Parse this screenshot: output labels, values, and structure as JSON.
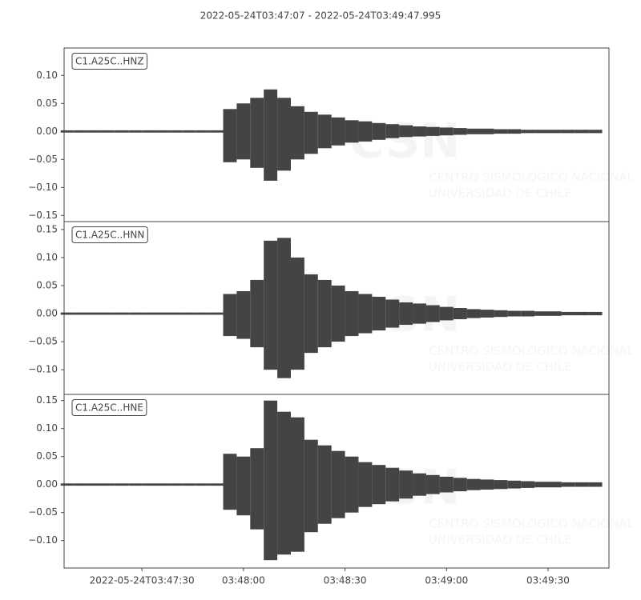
{
  "chart_data": [
    {
      "type": "envelope",
      "title": "2022-05-24T03:47:07  -  2022-05-24T03:49:47.995",
      "label": "C1.A25C..HNZ",
      "color": "#444444",
      "watermark": [
        "CSN",
        "CENTRO SISMOLOGICO NACIONAL",
        "UNIVERSIDAD DE CHILE"
      ],
      "x": [
        8,
        12,
        16,
        20,
        24,
        28,
        32,
        36,
        40,
        44,
        48,
        52,
        56,
        60,
        64,
        68,
        72,
        76,
        80,
        84,
        88,
        92,
        96,
        100,
        104,
        108,
        112,
        116,
        120,
        124,
        128,
        132,
        136,
        140,
        144,
        148,
        152,
        156,
        160,
        164
      ],
      "series": [
        {
          "name": "max",
          "values": [
            0.002,
            0.002,
            0.002,
            0.002,
            0.002,
            0.002,
            0.002,
            0.002,
            0.002,
            0.002,
            0.002,
            0.002,
            0.04,
            0.05,
            0.06,
            0.075,
            0.06,
            0.045,
            0.035,
            0.03,
            0.025,
            0.02,
            0.018,
            0.015,
            0.013,
            0.011,
            0.009,
            0.008,
            0.007,
            0.006,
            0.005,
            0.005,
            0.004,
            0.004,
            0.003,
            0.003,
            0.003,
            0.003,
            0.003,
            0.003
          ]
        },
        {
          "name": "min",
          "values": [
            -0.002,
            -0.002,
            -0.002,
            -0.002,
            -0.002,
            -0.002,
            -0.002,
            -0.002,
            -0.002,
            -0.002,
            -0.002,
            -0.002,
            -0.055,
            -0.05,
            -0.065,
            -0.088,
            -0.07,
            -0.05,
            -0.04,
            -0.03,
            -0.025,
            -0.02,
            -0.018,
            -0.015,
            -0.012,
            -0.01,
            -0.009,
            -0.008,
            -0.007,
            -0.006,
            -0.005,
            -0.005,
            -0.004,
            -0.004,
            -0.003,
            -0.003,
            -0.003,
            -0.003,
            -0.003,
            -0.003
          ]
        }
      ],
      "xlim": [
        7,
        167.995
      ],
      "ylim": [
        -0.161,
        0.149
      ],
      "yticks": [
        {
          "value": -0.15,
          "label": "−0.15"
        },
        {
          "value": -0.1,
          "label": "−0.10"
        },
        {
          "value": -0.05,
          "label": "−0.05"
        },
        {
          "value": 0,
          "label": "0.00"
        },
        {
          "value": 0.05,
          "label": "0.05"
        },
        {
          "value": 0.1,
          "label": "0.10"
        }
      ]
    },
    {
      "type": "envelope",
      "label": "C1.A25C..HNN",
      "color": "#444444",
      "x": [
        8,
        12,
        16,
        20,
        24,
        28,
        32,
        36,
        40,
        44,
        48,
        52,
        56,
        60,
        64,
        68,
        72,
        76,
        80,
        84,
        88,
        92,
        96,
        100,
        104,
        108,
        112,
        116,
        120,
        124,
        128,
        132,
        136,
        140,
        144,
        148,
        152,
        156,
        160,
        164
      ],
      "series": [
        {
          "name": "max",
          "values": [
            0.002,
            0.002,
            0.002,
            0.002,
            0.002,
            0.002,
            0.002,
            0.002,
            0.002,
            0.002,
            0.002,
            0.002,
            0.035,
            0.04,
            0.06,
            0.13,
            0.135,
            0.1,
            0.07,
            0.06,
            0.05,
            0.04,
            0.035,
            0.03,
            0.025,
            0.02,
            0.018,
            0.015,
            0.012,
            0.01,
            0.008,
            0.007,
            0.006,
            0.005,
            0.005,
            0.004,
            0.004,
            0.003,
            0.003,
            0.003
          ]
        },
        {
          "name": "min",
          "values": [
            -0.002,
            -0.002,
            -0.002,
            -0.002,
            -0.002,
            -0.002,
            -0.002,
            -0.002,
            -0.002,
            -0.002,
            -0.002,
            -0.002,
            -0.04,
            -0.045,
            -0.06,
            -0.1,
            -0.115,
            -0.1,
            -0.07,
            -0.06,
            -0.05,
            -0.04,
            -0.035,
            -0.03,
            -0.025,
            -0.02,
            -0.018,
            -0.015,
            -0.012,
            -0.01,
            -0.008,
            -0.007,
            -0.006,
            -0.005,
            -0.005,
            -0.004,
            -0.004,
            -0.003,
            -0.003,
            -0.003
          ]
        }
      ],
      "xlim": [
        7,
        167.995
      ],
      "ylim": [
        -0.144,
        0.164
      ],
      "yticks": [
        {
          "value": -0.1,
          "label": "−0.10"
        },
        {
          "value": -0.05,
          "label": "−0.05"
        },
        {
          "value": 0,
          "label": "0.00"
        },
        {
          "value": 0.05,
          "label": "0.05"
        },
        {
          "value": 0.1,
          "label": "0.10"
        },
        {
          "value": 0.15,
          "label": "0.15"
        }
      ]
    },
    {
      "type": "envelope",
      "label": "C1.A25C..HNE",
      "color": "#444444",
      "x": [
        8,
        12,
        16,
        20,
        24,
        28,
        32,
        36,
        40,
        44,
        48,
        52,
        56,
        60,
        64,
        68,
        72,
        76,
        80,
        84,
        88,
        92,
        96,
        100,
        104,
        108,
        112,
        116,
        120,
        124,
        128,
        132,
        136,
        140,
        144,
        148,
        152,
        156,
        160,
        164
      ],
      "series": [
        {
          "name": "max",
          "values": [
            0.002,
            0.002,
            0.002,
            0.002,
            0.002,
            0.002,
            0.002,
            0.002,
            0.002,
            0.002,
            0.002,
            0.002,
            0.055,
            0.05,
            0.065,
            0.15,
            0.13,
            0.12,
            0.08,
            0.07,
            0.06,
            0.05,
            0.04,
            0.035,
            0.03,
            0.025,
            0.02,
            0.017,
            0.014,
            0.012,
            0.01,
            0.009,
            0.008,
            0.007,
            0.006,
            0.005,
            0.005,
            0.004,
            0.004,
            0.004
          ]
        },
        {
          "name": "min",
          "values": [
            -0.002,
            -0.002,
            -0.002,
            -0.002,
            -0.002,
            -0.002,
            -0.002,
            -0.002,
            -0.002,
            -0.002,
            -0.002,
            -0.002,
            -0.045,
            -0.055,
            -0.08,
            -0.135,
            -0.125,
            -0.12,
            -0.085,
            -0.07,
            -0.06,
            -0.05,
            -0.04,
            -0.035,
            -0.03,
            -0.025,
            -0.02,
            -0.017,
            -0.014,
            -0.012,
            -0.01,
            -0.009,
            -0.008,
            -0.007,
            -0.006,
            -0.005,
            -0.005,
            -0.004,
            -0.004,
            -0.004
          ]
        }
      ],
      "xlim": [
        7,
        167.995
      ],
      "ylim": [
        -0.149,
        0.161
      ],
      "yticks": [
        {
          "value": -0.1,
          "label": "−0.10"
        },
        {
          "value": -0.05,
          "label": "−0.05"
        },
        {
          "value": 0,
          "label": "0.00"
        },
        {
          "value": 0.05,
          "label": "0.05"
        },
        {
          "value": 0.1,
          "label": "0.10"
        },
        {
          "value": 0.15,
          "label": "0.15"
        }
      ],
      "xticks": [
        {
          "value": 30,
          "label": "2022-05-24T03:47:30"
        },
        {
          "value": 60,
          "label": "03:48:00"
        },
        {
          "value": 90,
          "label": "03:48:30"
        },
        {
          "value": 120,
          "label": "03:49:00"
        },
        {
          "value": 150,
          "label": "03:49:30"
        }
      ]
    }
  ]
}
